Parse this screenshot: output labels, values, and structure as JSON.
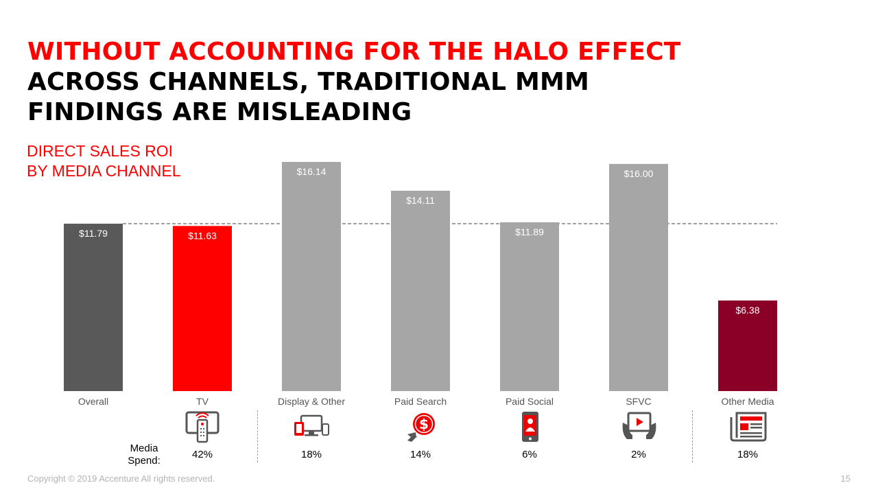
{
  "headline": {
    "red_part": "WITHOUT ACCOUNTING FOR THE HALO EFFECT",
    "black_part": "ACROSS CHANNELS, TRADITIONAL MMM FINDINGS ARE MISLEADING"
  },
  "subtitle_lines": [
    "DIRECT SALES ROI",
    "BY MEDIA CHANNEL"
  ],
  "colors": {
    "accent_red": "#ff0000",
    "dark_gray": "#595959",
    "light_gray": "#a6a6a6",
    "dark_red": "#8b0026"
  },
  "chart_data": {
    "type": "bar",
    "title": "",
    "xlabel": "",
    "ylabel": "",
    "ylim": [
      0,
      16.14
    ],
    "grid": false,
    "reference_line": 11.79,
    "categories": [
      "Overall",
      "TV",
      "Display & Other",
      "Paid Search",
      "Paid Social",
      "SFVC",
      "Other Media"
    ],
    "values": [
      11.79,
      11.63,
      16.14,
      14.11,
      11.89,
      16.0,
      6.38
    ],
    "data_labels": [
      "$11.79",
      "$11.63",
      "$16.14",
      "$14.11",
      "$11.89",
      "$16.00",
      "$6.38"
    ],
    "bar_colors": [
      "#595959",
      "#ff0000",
      "#a6a6a6",
      "#a6a6a6",
      "#a6a6a6",
      "#a6a6a6",
      "#8b0026"
    ]
  },
  "media_spend": {
    "label_lines": [
      "Media",
      "Spend:"
    ],
    "values": [
      "42%",
      "18%",
      "14%",
      "6%",
      "2%",
      "18%"
    ],
    "icons": [
      "tv-remote-icon",
      "devices-icon",
      "search-ad-icon",
      "smartphone-social-icon",
      "tablet-video-icon",
      "newspaper-icon"
    ]
  },
  "footer": {
    "copyright": "Copyright © 2019 Accenture All rights reserved.",
    "page_number": "15"
  }
}
